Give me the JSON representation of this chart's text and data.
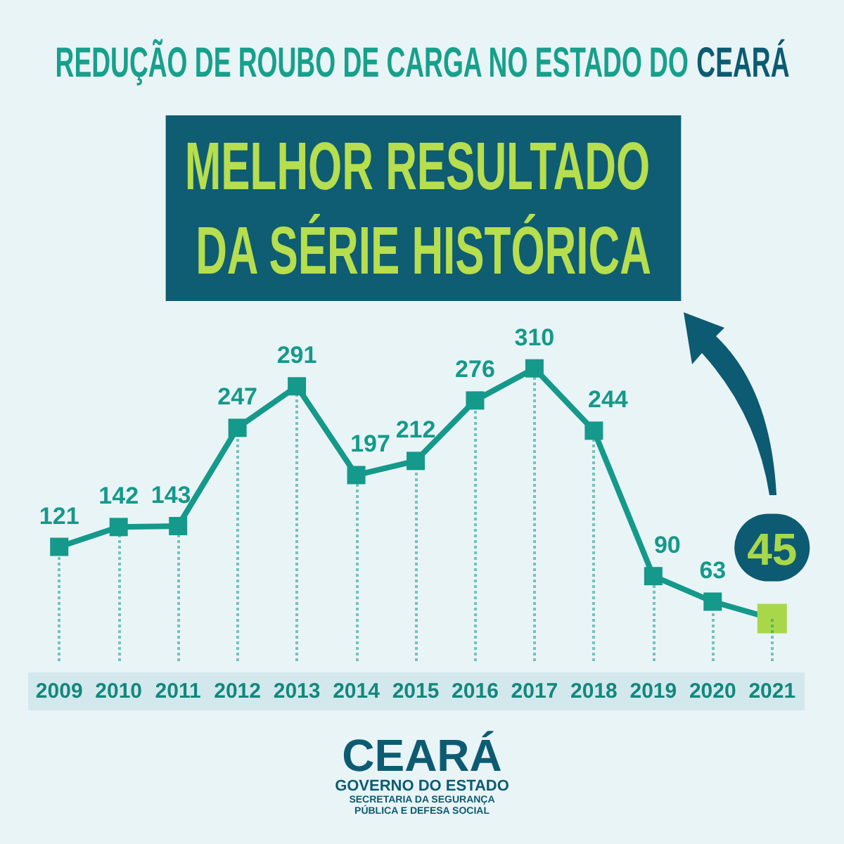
{
  "chart_data": {
    "type": "line",
    "title": "REDUÇÃO DE ROUBO DE CARGA NO ESTADO DO CEARÁ",
    "subtitle": "MELHOR RESULTADO DA SÉRIE HISTÓRICA",
    "categories": [
      "2009",
      "2010",
      "2011",
      "2012",
      "2013",
      "2014",
      "2015",
      "2016",
      "2017",
      "2018",
      "2019",
      "2020",
      "2021"
    ],
    "values": [
      121,
      142,
      143,
      247,
      291,
      197,
      212,
      276,
      310,
      244,
      90,
      63,
      45
    ],
    "color": "#14998a",
    "colors": [
      "#14998a",
      "#14998a",
      "#14998a",
      "#14998a",
      "#14998a",
      "#14998a",
      "#14998a",
      "#14998a",
      "#14998a",
      "#14998a",
      "#14998a",
      "#14998a",
      "#a8d84a"
    ],
    "marker": "square",
    "line_style": "solid",
    "grid": "x",
    "data_labels": true,
    "tick_labels": "x",
    "annotations": [
      "CEARÁ",
      "GOVERNO DO ESTADO",
      "SECRETARIA DA SEGURANÇA",
      "PÚBLICA E DEFESA SOCIAL"
    ]
  }
}
